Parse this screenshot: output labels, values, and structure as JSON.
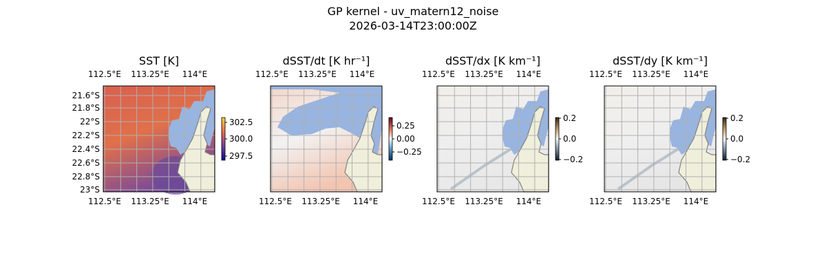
{
  "figure": {
    "title": "GP kernel - uv_matern12_noise",
    "subtitle": "2026-03-14T23:00:00Z"
  },
  "chart_data": [
    {
      "type": "heatmap",
      "title": "SST [K]",
      "colormap": "plasma-like",
      "xticks": [
        "112.5°E",
        "113.25°E",
        "114°E"
      ],
      "yticks": [
        "21.6°S",
        "21.8°S",
        "22°S",
        "22.2°S",
        "22.4°S",
        "22.6°S",
        "22.8°S",
        "23°S"
      ],
      "colorbar_ticks": [
        "302.5",
        "300.0",
        "297.5"
      ],
      "colors": [
        "#0d0887",
        "#6a3d9a",
        "#d9604f",
        "#f7d13d"
      ],
      "grid": true
    },
    {
      "type": "heatmap",
      "title": "dSST/dt [K hr⁻¹]",
      "colormap": "RdBu_r",
      "xticks": [
        "112.5°E",
        "113.25°E",
        "114°E"
      ],
      "colorbar_ticks": [
        "0.25",
        "0.00",
        "−0.25"
      ],
      "colors": [
        "#053061",
        "#f7f7f7",
        "#67001f"
      ],
      "grid": true
    },
    {
      "type": "heatmap",
      "title": "dSST/dx [K km⁻¹]",
      "colormap": "diverging gray-brown",
      "xticks": [
        "112.5°E",
        "113.25°E",
        "114°E"
      ],
      "colorbar_ticks": [
        "0.2",
        "0.0",
        "−0.2"
      ],
      "colors": [
        "#0b1e2e",
        "#f5f5f5",
        "#3b2406"
      ],
      "grid": true
    },
    {
      "type": "heatmap",
      "title": "dSST/dy [K km⁻¹]",
      "colormap": "diverging gray-brown",
      "xticks": [
        "112.5°E",
        "113.25°E",
        "114°E"
      ],
      "colorbar_ticks": [
        "0.2",
        "0.0",
        "−0.2"
      ],
      "colors": [
        "#0b1e2e",
        "#f5f5f5",
        "#3b2406"
      ],
      "grid": true
    }
  ],
  "colors": {
    "land": "#efefdb",
    "masked": "#98b4e0",
    "grid": "#b0b0b0"
  }
}
